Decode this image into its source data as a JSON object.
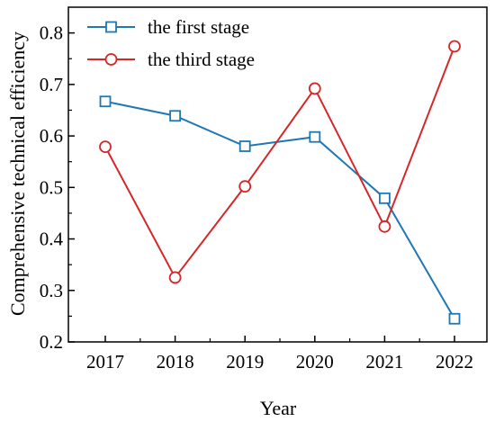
{
  "chart_data": {
    "type": "line",
    "title": "",
    "xlabel": "Year",
    "ylabel": "Comprehensive technical efficiency",
    "categories": [
      "2017",
      "2018",
      "2019",
      "2020",
      "2021",
      "2022"
    ],
    "ylim": [
      0.2,
      0.85
    ],
    "yticks": [
      "0.2",
      "0.3",
      "0.4",
      "0.5",
      "0.6",
      "0.7",
      "0.8"
    ],
    "grid": false,
    "legend_position": "top-left",
    "series": [
      {
        "name": "the first stage",
        "marker": "square",
        "color": "#1f77b4",
        "values": [
          0.667,
          0.639,
          0.58,
          0.598,
          0.479,
          0.245
        ]
      },
      {
        "name": "the third stage",
        "marker": "circle",
        "color": "#d62728",
        "values": [
          0.579,
          0.325,
          0.502,
          0.692,
          0.424,
          0.774
        ]
      }
    ]
  }
}
